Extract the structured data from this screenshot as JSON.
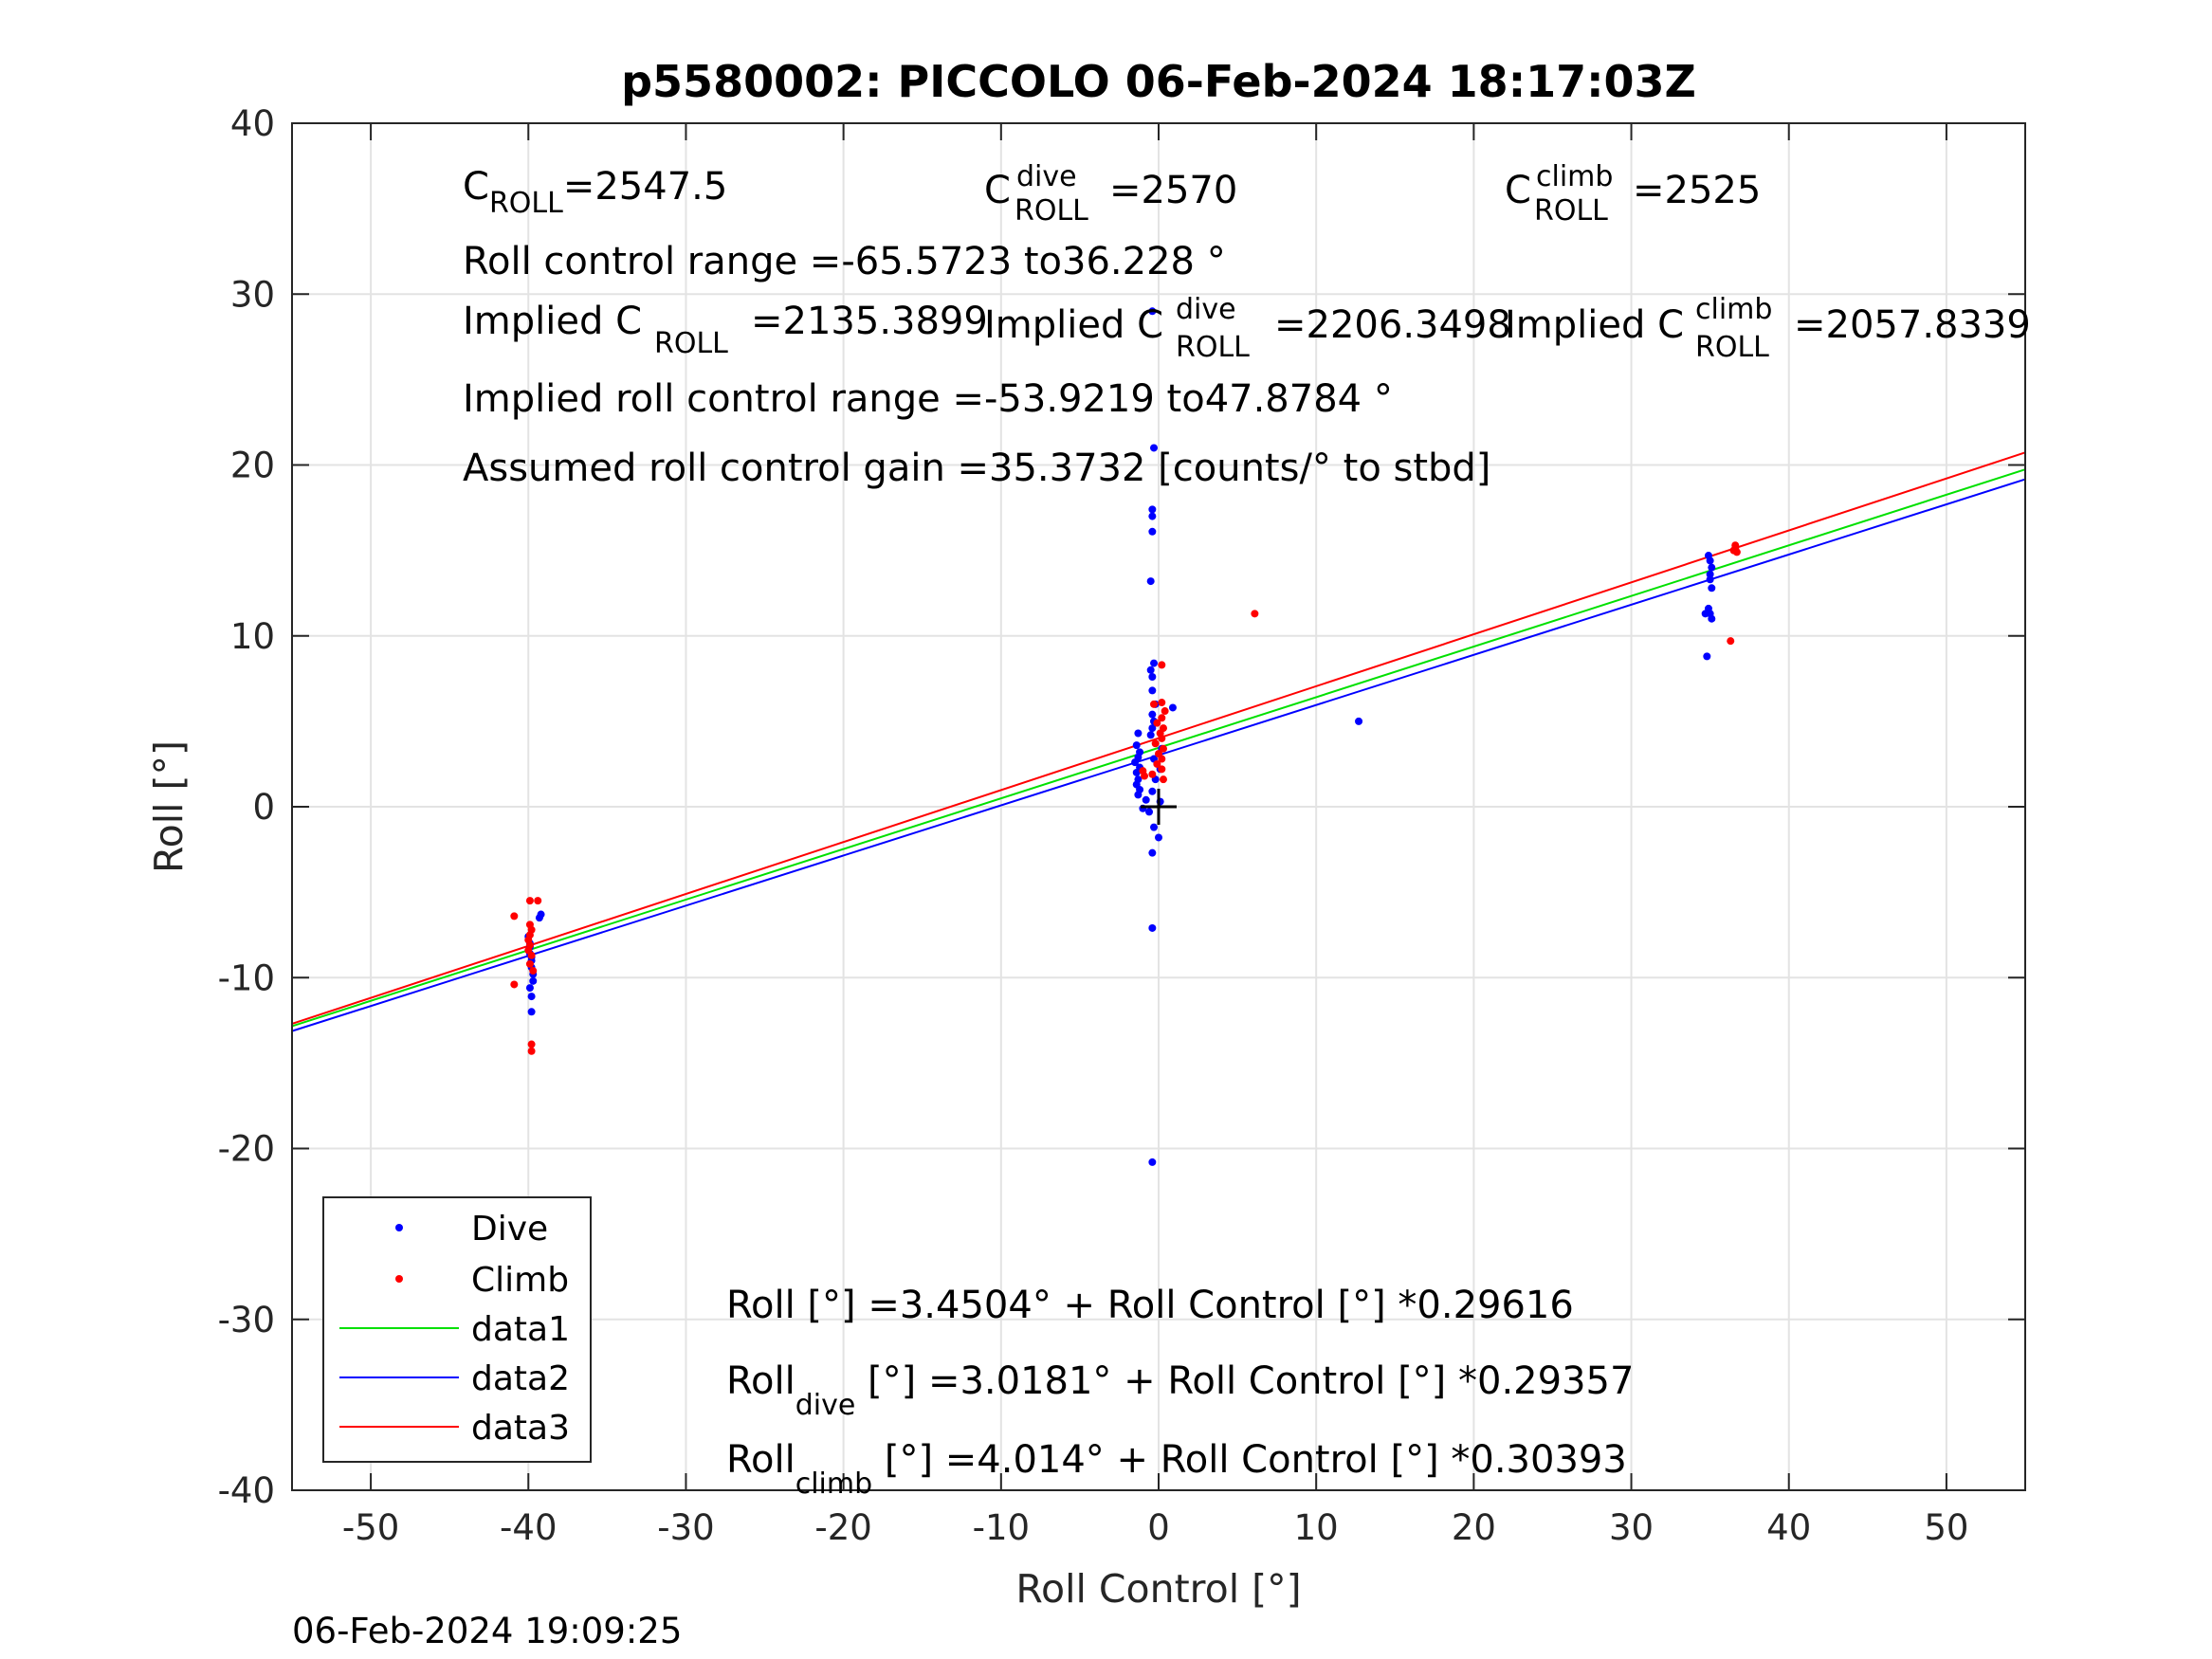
{
  "chart_data": {
    "type": "scatter",
    "title": "p5580002: PICCOLO 06-Feb-2024 18:17:03Z",
    "xlabel": "Roll Control [°]",
    "ylabel": "Roll [°]",
    "xlim": [
      -55,
      55
    ],
    "ylim": [
      -40,
      40
    ],
    "xticks": [
      "-50",
      "-40",
      "-30",
      "-20",
      "-10",
      "0",
      "10",
      "20",
      "30",
      "40",
      "50"
    ],
    "yticks": [
      "40",
      "30",
      "20",
      "10",
      "0",
      "-10",
      "-20",
      "-30",
      "-40"
    ],
    "grid": true,
    "legend_position": "bottom-left",
    "legend": [
      "Dive",
      "Climb",
      "data1",
      "data2",
      "data3"
    ],
    "colors": {
      "dive": "#0000ff",
      "climb": "#ff0000",
      "data1": "#00e000",
      "data2": "#0000ff",
      "data3": "#ff0000",
      "marker": "#000000",
      "grid": "#e3e3e3",
      "axes": "#262626"
    },
    "dive_points": [
      [
        -39.9,
        -8.2
      ],
      [
        -39.9,
        -8.6
      ],
      [
        -39.8,
        -9.0
      ],
      [
        -39.8,
        -9.4
      ],
      [
        -39.7,
        -9.8
      ],
      [
        -39.7,
        -10.2
      ],
      [
        -39.9,
        -10.6
      ],
      [
        -39.8,
        -11.1
      ],
      [
        -39.8,
        -12.0
      ],
      [
        -39.9,
        -8.0
      ],
      [
        -40.0,
        -7.6
      ],
      [
        -39.2,
        -6.3
      ],
      [
        -39.3,
        -6.5
      ],
      [
        -39.8,
        -8.8
      ],
      [
        -0.4,
        29.0
      ],
      [
        -0.3,
        21.0
      ],
      [
        -0.4,
        17.4
      ],
      [
        -0.4,
        17.0
      ],
      [
        -0.4,
        16.1
      ],
      [
        -0.5,
        13.2
      ],
      [
        -0.3,
        8.4
      ],
      [
        -0.5,
        8.0
      ],
      [
        -0.4,
        7.6
      ],
      [
        -0.4,
        6.8
      ],
      [
        -0.2,
        6.0
      ],
      [
        -0.4,
        5.4
      ],
      [
        -0.3,
        5.0
      ],
      [
        -0.4,
        4.6
      ],
      [
        -0.5,
        4.2
      ],
      [
        -1.3,
        4.3
      ],
      [
        -1.4,
        3.6
      ],
      [
        -1.2,
        3.2
      ],
      [
        -1.3,
        2.9
      ],
      [
        -1.5,
        2.6
      ],
      [
        -1.2,
        2.3
      ],
      [
        -1.4,
        2.0
      ],
      [
        -1.3,
        1.6
      ],
      [
        -1.4,
        1.3
      ],
      [
        -1.2,
        1.0
      ],
      [
        -1.3,
        0.7
      ],
      [
        -0.8,
        0.4
      ],
      [
        -0.4,
        0.9
      ],
      [
        -0.2,
        1.6
      ],
      [
        -0.3,
        2.8
      ],
      [
        0.1,
        2.2
      ],
      [
        0.2,
        3.4
      ],
      [
        -1.0,
        -0.1
      ],
      [
        -0.6,
        -0.3
      ],
      [
        0.1,
        0.3
      ],
      [
        -0.3,
        -1.2
      ],
      [
        0.0,
        -1.8
      ],
      [
        -0.4,
        -2.7
      ],
      [
        -0.4,
        -7.1
      ],
      [
        -0.4,
        -20.8
      ],
      [
        0.9,
        5.8
      ],
      [
        12.7,
        5.0
      ],
      [
        34.9,
        14.7
      ],
      [
        35.0,
        14.4
      ],
      [
        35.1,
        14.0
      ],
      [
        35.0,
        13.6
      ],
      [
        35.0,
        13.3
      ],
      [
        35.1,
        12.8
      ],
      [
        34.9,
        11.6
      ],
      [
        35.0,
        11.3
      ],
      [
        35.1,
        11.0
      ],
      [
        34.7,
        11.3
      ],
      [
        34.8,
        8.8
      ]
    ],
    "climb_points": [
      [
        -40.9,
        -6.4
      ],
      [
        -39.9,
        -5.5
      ],
      [
        -39.4,
        -5.5
      ],
      [
        -39.9,
        -6.9
      ],
      [
        -39.8,
        -7.2
      ],
      [
        -39.9,
        -7.5
      ],
      [
        -40.0,
        -7.8
      ],
      [
        -39.9,
        -8.1
      ],
      [
        -40.0,
        -8.4
      ],
      [
        -39.8,
        -8.7
      ],
      [
        -39.9,
        -9.2
      ],
      [
        -39.7,
        -9.6
      ],
      [
        -40.9,
        -10.4
      ],
      [
        -39.8,
        -13.9
      ],
      [
        -39.8,
        -14.3
      ],
      [
        0.2,
        8.3
      ],
      [
        0.2,
        6.1
      ],
      [
        -0.3,
        6.0
      ],
      [
        0.4,
        5.6
      ],
      [
        0.2,
        5.2
      ],
      [
        -0.1,
        4.9
      ],
      [
        0.3,
        4.6
      ],
      [
        0.1,
        4.3
      ],
      [
        0.2,
        4.0
      ],
      [
        -0.2,
        3.7
      ],
      [
        0.3,
        3.4
      ],
      [
        0.0,
        3.1
      ],
      [
        0.2,
        2.8
      ],
      [
        -0.1,
        2.5
      ],
      [
        0.2,
        2.2
      ],
      [
        -0.4,
        1.9
      ],
      [
        -0.9,
        1.8
      ],
      [
        -1.0,
        2.1
      ],
      [
        0.3,
        1.6
      ],
      [
        6.1,
        11.3
      ],
      [
        36.6,
        15.3
      ],
      [
        36.6,
        15.1
      ],
      [
        36.7,
        14.9
      ],
      [
        36.5,
        15.0
      ],
      [
        36.3,
        9.7
      ]
    ],
    "fit_lines": [
      {
        "name": "data1",
        "intercept": 3.4504,
        "slope": 0.29616
      },
      {
        "name": "data2",
        "intercept": 3.0181,
        "slope": 0.29357
      },
      {
        "name": "data3",
        "intercept": 4.014,
        "slope": 0.30393
      }
    ],
    "origin_marker": [
      0,
      0
    ]
  },
  "annotations": {
    "c_roll": {
      "base": "C",
      "sub": "ROLL",
      "value": "=2547.5"
    },
    "c_roll_dive": {
      "base": "C",
      "sup": "dive",
      "sub": "ROLL",
      "value": "=2570"
    },
    "c_roll_climb": {
      "base": "C",
      "sup": "climb",
      "sub": "ROLL",
      "value": "=2525"
    },
    "roll_control_range": "Roll control range =-65.5723 to36.228 °",
    "implied_c_roll": {
      "base": "Implied C",
      "sub": "ROLL",
      "value": "=2135.3899"
    },
    "implied_c_roll_dive": {
      "base": "Implied C",
      "sup": "dive",
      "sub": "ROLL",
      "value": "=2206.3498"
    },
    "implied_c_roll_climb": {
      "base": "Implied C",
      "sup": "climb",
      "sub": "ROLL",
      "value": "=2057.8339"
    },
    "implied_range": "Implied roll control range =-53.9219 to47.8784 °",
    "assumed_gain": "Assumed roll control gain =35.3732 [counts/° to stbd]",
    "fit_all": "Roll [°] =3.4504° + Roll Control [°] *0.29616",
    "fit_dive": {
      "base": "Roll",
      "sub": "dive",
      "rest": " [°] =3.0181° + Roll Control [°] *0.29357"
    },
    "fit_climb": {
      "base": "Roll",
      "sub": "climb",
      "rest": " [°] =4.014° + Roll Control [°] *0.30393"
    }
  },
  "timestamp": "06-Feb-2024 19:09:25"
}
